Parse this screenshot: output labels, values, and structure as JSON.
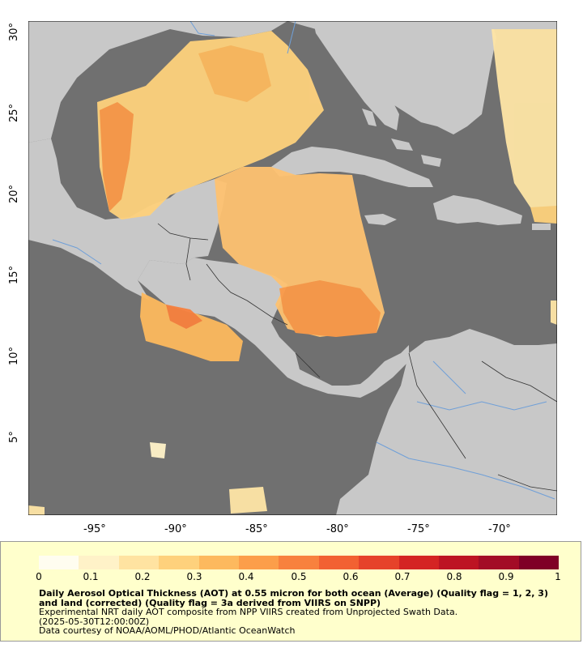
{
  "map": {
    "longitude_ticks": [
      "-95°",
      "-90°",
      "-85°",
      "-80°",
      "-75°",
      "-70°"
    ],
    "latitude_ticks": [
      "30°",
      "25°",
      "20°",
      "15°",
      "10°",
      "5°"
    ],
    "colors": {
      "ocean": "#707070",
      "land": "#c8c8c8",
      "rivers": "#6f9fd8",
      "borders": "#333333"
    }
  },
  "legend": {
    "colormap": [
      "#fffdf0",
      "#fff2c8",
      "#ffe3a1",
      "#fed17c",
      "#fdb95e",
      "#fc9e4a",
      "#f8813e",
      "#f26132",
      "#e6422a",
      "#d42423",
      "#bd1423",
      "#a30c26",
      "#7f0026"
    ],
    "ticks": [
      "0",
      "0.1",
      "0.2",
      "0.3",
      "0.4",
      "0.5",
      "0.6",
      "0.7",
      "0.8",
      "0.9",
      "1"
    ],
    "title": "Daily Aerosol Optical Thickness (AOT) at 0.55 micron for both ocean (Average) (Quality flag = 1, 2, 3) and land (corrected) (Quality flag = 3a derived from VIIRS on SNPP)",
    "line2": "Experimental NRT daily AOT composite from NPP VIIRS created from Unprojected Swath Data.",
    "line3": "(2025-05-30T12:00:00Z)",
    "line4": "Data courtesy of NOAA/AOML/PHOD/Atlantic OceanWatch"
  }
}
